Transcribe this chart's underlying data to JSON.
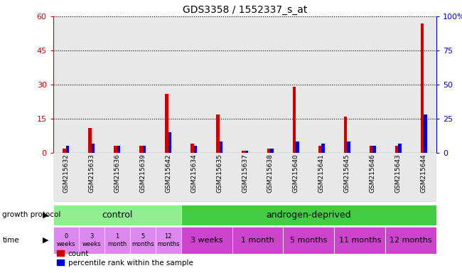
{
  "title": "GDS3358 / 1552337_s_at",
  "samples": [
    "GSM215632",
    "GSM215633",
    "GSM215636",
    "GSM215639",
    "GSM215642",
    "GSM215634",
    "GSM215635",
    "GSM215637",
    "GSM215638",
    "GSM215640",
    "GSM215641",
    "GSM215645",
    "GSM215646",
    "GSM215643",
    "GSM215644"
  ],
  "count": [
    2,
    11,
    3,
    3,
    26,
    4,
    17,
    1,
    2,
    29,
    3,
    16,
    3,
    3,
    57
  ],
  "percentile": [
    3,
    4,
    3,
    3,
    9,
    3,
    5,
    1,
    2,
    5,
    4,
    5,
    3,
    4,
    17
  ],
  "ylim_left": [
    0,
    60
  ],
  "ylim_right": [
    0,
    100
  ],
  "yticks_left": [
    0,
    15,
    30,
    45,
    60
  ],
  "yticks_right": [
    0,
    25,
    50,
    75,
    100
  ],
  "bar_color_red": "#cc0000",
  "bar_color_blue": "#0000cc",
  "protocol_control_color": "#90ee90",
  "protocol_androgen_color": "#44cc44",
  "time_ctrl_color": "#dd88ee",
  "time_andr_color": "#cc44cc",
  "bg_color_bar": "#e8e8e8",
  "chart_bg": "#ffffff",
  "control_times": [
    "0\nweeks",
    "3\nweeks",
    "1\nmonth",
    "5\nmonths",
    "12\nmonths"
  ],
  "androgen_groups": [
    [
      5,
      6,
      "3 weeks"
    ],
    [
      7,
      8,
      "1 month"
    ],
    [
      9,
      10,
      "5 months"
    ],
    [
      11,
      12,
      "11 months"
    ],
    [
      13,
      14,
      "12 months"
    ]
  ]
}
